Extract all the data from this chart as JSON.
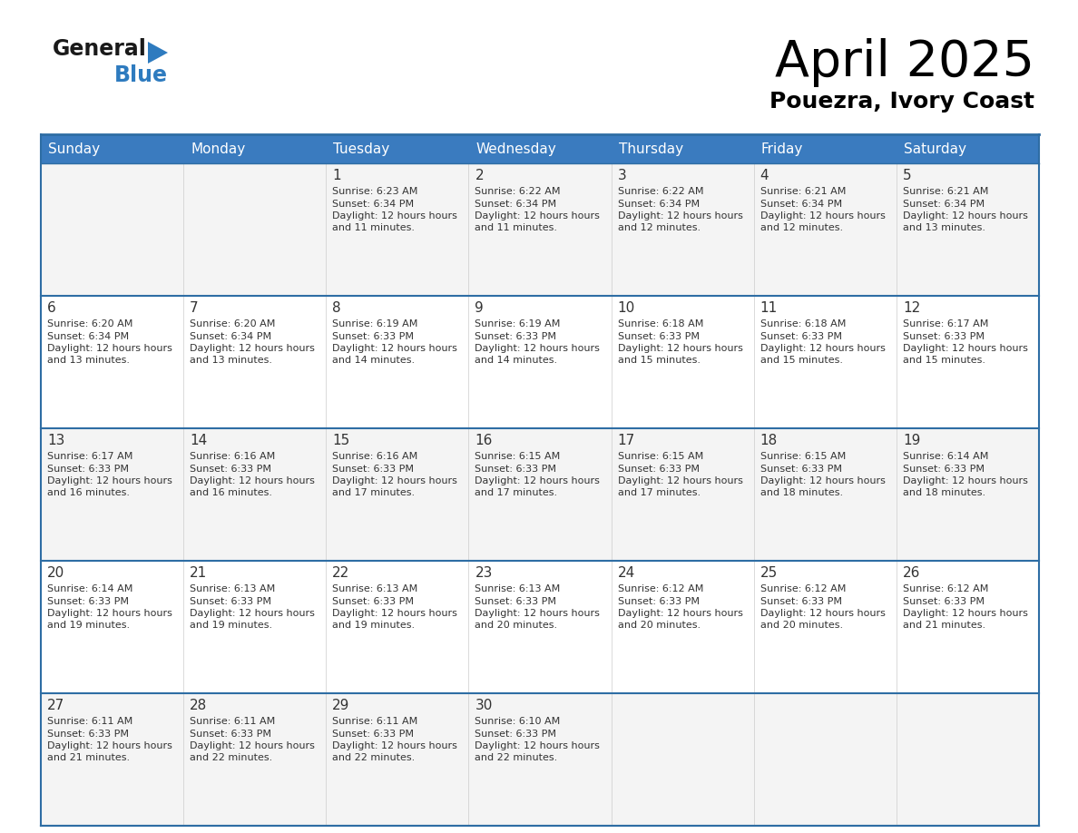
{
  "title": "April 2025",
  "subtitle": "Pouezra, Ivory Coast",
  "header_color": "#3a7bbf",
  "header_text_color": "#ffffff",
  "border_color": "#2e6da4",
  "row_sep_color": "#2e6da4",
  "text_color": "#333333",
  "days_of_week": [
    "Sunday",
    "Monday",
    "Tuesday",
    "Wednesday",
    "Thursday",
    "Friday",
    "Saturday"
  ],
  "logo_general_color": "#1a1a1a",
  "logo_blue_color": "#2e7bbf",
  "logo_triangle_color": "#2e7bbf",
  "title_fontsize": 40,
  "subtitle_fontsize": 18,
  "header_fontsize": 11,
  "day_num_fontsize": 11,
  "cell_text_fontsize": 8,
  "calendar_data": [
    [
      {
        "day": "",
        "sunrise": "",
        "sunset": "",
        "daylight": ""
      },
      {
        "day": "",
        "sunrise": "",
        "sunset": "",
        "daylight": ""
      },
      {
        "day": "1",
        "sunrise": "6:23 AM",
        "sunset": "6:34 PM",
        "daylight": "12 hours and 11 minutes."
      },
      {
        "day": "2",
        "sunrise": "6:22 AM",
        "sunset": "6:34 PM",
        "daylight": "12 hours and 11 minutes."
      },
      {
        "day": "3",
        "sunrise": "6:22 AM",
        "sunset": "6:34 PM",
        "daylight": "12 hours and 12 minutes."
      },
      {
        "day": "4",
        "sunrise": "6:21 AM",
        "sunset": "6:34 PM",
        "daylight": "12 hours and 12 minutes."
      },
      {
        "day": "5",
        "sunrise": "6:21 AM",
        "sunset": "6:34 PM",
        "daylight": "12 hours and 13 minutes."
      }
    ],
    [
      {
        "day": "6",
        "sunrise": "6:20 AM",
        "sunset": "6:34 PM",
        "daylight": "12 hours and 13 minutes."
      },
      {
        "day": "7",
        "sunrise": "6:20 AM",
        "sunset": "6:34 PM",
        "daylight": "12 hours and 13 minutes."
      },
      {
        "day": "8",
        "sunrise": "6:19 AM",
        "sunset": "6:33 PM",
        "daylight": "12 hours and 14 minutes."
      },
      {
        "day": "9",
        "sunrise": "6:19 AM",
        "sunset": "6:33 PM",
        "daylight": "12 hours and 14 minutes."
      },
      {
        "day": "10",
        "sunrise": "6:18 AM",
        "sunset": "6:33 PM",
        "daylight": "12 hours and 15 minutes."
      },
      {
        "day": "11",
        "sunrise": "6:18 AM",
        "sunset": "6:33 PM",
        "daylight": "12 hours and 15 minutes."
      },
      {
        "day": "12",
        "sunrise": "6:17 AM",
        "sunset": "6:33 PM",
        "daylight": "12 hours and 15 minutes."
      }
    ],
    [
      {
        "day": "13",
        "sunrise": "6:17 AM",
        "sunset": "6:33 PM",
        "daylight": "12 hours and 16 minutes."
      },
      {
        "day": "14",
        "sunrise": "6:16 AM",
        "sunset": "6:33 PM",
        "daylight": "12 hours and 16 minutes."
      },
      {
        "day": "15",
        "sunrise": "6:16 AM",
        "sunset": "6:33 PM",
        "daylight": "12 hours and 17 minutes."
      },
      {
        "day": "16",
        "sunrise": "6:15 AM",
        "sunset": "6:33 PM",
        "daylight": "12 hours and 17 minutes."
      },
      {
        "day": "17",
        "sunrise": "6:15 AM",
        "sunset": "6:33 PM",
        "daylight": "12 hours and 17 minutes."
      },
      {
        "day": "18",
        "sunrise": "6:15 AM",
        "sunset": "6:33 PM",
        "daylight": "12 hours and 18 minutes."
      },
      {
        "day": "19",
        "sunrise": "6:14 AM",
        "sunset": "6:33 PM",
        "daylight": "12 hours and 18 minutes."
      }
    ],
    [
      {
        "day": "20",
        "sunrise": "6:14 AM",
        "sunset": "6:33 PM",
        "daylight": "12 hours and 19 minutes."
      },
      {
        "day": "21",
        "sunrise": "6:13 AM",
        "sunset": "6:33 PM",
        "daylight": "12 hours and 19 minutes."
      },
      {
        "day": "22",
        "sunrise": "6:13 AM",
        "sunset": "6:33 PM",
        "daylight": "12 hours and 19 minutes."
      },
      {
        "day": "23",
        "sunrise": "6:13 AM",
        "sunset": "6:33 PM",
        "daylight": "12 hours and 20 minutes."
      },
      {
        "day": "24",
        "sunrise": "6:12 AM",
        "sunset": "6:33 PM",
        "daylight": "12 hours and 20 minutes."
      },
      {
        "day": "25",
        "sunrise": "6:12 AM",
        "sunset": "6:33 PM",
        "daylight": "12 hours and 20 minutes."
      },
      {
        "day": "26",
        "sunrise": "6:12 AM",
        "sunset": "6:33 PM",
        "daylight": "12 hours and 21 minutes."
      }
    ],
    [
      {
        "day": "27",
        "sunrise": "6:11 AM",
        "sunset": "6:33 PM",
        "daylight": "12 hours and 21 minutes."
      },
      {
        "day": "28",
        "sunrise": "6:11 AM",
        "sunset": "6:33 PM",
        "daylight": "12 hours and 22 minutes."
      },
      {
        "day": "29",
        "sunrise": "6:11 AM",
        "sunset": "6:33 PM",
        "daylight": "12 hours and 22 minutes."
      },
      {
        "day": "30",
        "sunrise": "6:10 AM",
        "sunset": "6:33 PM",
        "daylight": "12 hours and 22 minutes."
      },
      {
        "day": "",
        "sunrise": "",
        "sunset": "",
        "daylight": ""
      },
      {
        "day": "",
        "sunrise": "",
        "sunset": "",
        "daylight": ""
      },
      {
        "day": "",
        "sunrise": "",
        "sunset": "",
        "daylight": ""
      }
    ]
  ]
}
